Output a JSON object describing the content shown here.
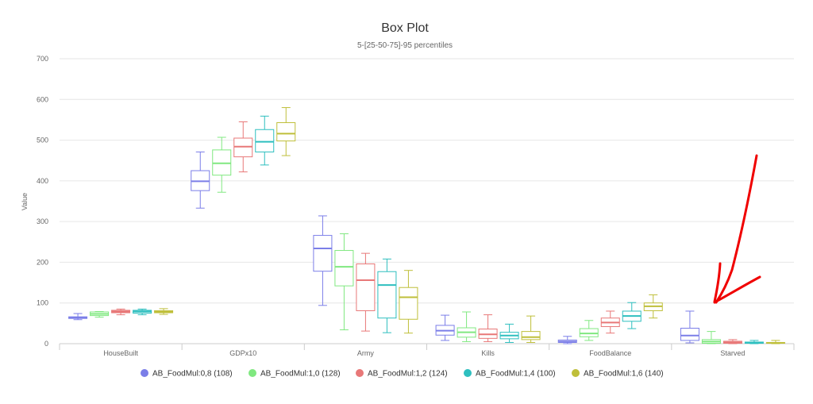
{
  "chart_data": {
    "type": "box",
    "title": "Box Plot",
    "subtitle": "5-[25-50-75]-95 percentiles",
    "ylabel": "Value",
    "xlabel": "",
    "ylim": [
      0,
      700
    ],
    "yticks": [
      0,
      100,
      200,
      300,
      400,
      500,
      600,
      700
    ],
    "grid": true,
    "legend_position": "bottom",
    "categories": [
      "HouseBuilt",
      "GDPx10",
      "Army",
      "Kills",
      "FoodBalance",
      "Starved"
    ],
    "series": [
      {
        "name": "AB_FoodMul:0,8 (108)",
        "color": "#7b7ee8",
        "boxes": [
          [
            59,
            62,
            64,
            66,
            74
          ],
          [
            333,
            376,
            399,
            425,
            471
          ],
          [
            94,
            178,
            234,
            266,
            314
          ],
          [
            8,
            21,
            32,
            45,
            70
          ],
          [
            0,
            3,
            5,
            9,
            18
          ],
          [
            2,
            8,
            20,
            38,
            80
          ]
        ]
      },
      {
        "name": "AB_FoodMul:1,0 (128)",
        "color": "#80e880",
        "boxes": [
          [
            65,
            69,
            73,
            78,
            79
          ],
          [
            372,
            414,
            443,
            476,
            507
          ],
          [
            34,
            142,
            189,
            229,
            270
          ],
          [
            5,
            16,
            28,
            39,
            78
          ],
          [
            8,
            17,
            25,
            37,
            57
          ],
          [
            0,
            1,
            5,
            10,
            30
          ]
        ]
      },
      {
        "name": "AB_FoodMul:1,2 (124)",
        "color": "#e87878",
        "boxes": [
          [
            71,
            76,
            79,
            82,
            85
          ],
          [
            422,
            459,
            484,
            505,
            545
          ],
          [
            31,
            81,
            156,
            196,
            222
          ],
          [
            5,
            13,
            23,
            36,
            71
          ],
          [
            26,
            42,
            52,
            63,
            80
          ],
          [
            0,
            1,
            3,
            6,
            10
          ]
        ]
      },
      {
        "name": "AB_FoodMul:1,4 (100)",
        "color": "#2ebfbf",
        "boxes": [
          [
            71,
            75,
            79,
            82,
            85
          ],
          [
            439,
            471,
            496,
            526,
            559
          ],
          [
            27,
            63,
            144,
            177,
            208
          ],
          [
            3,
            12,
            20,
            28,
            48
          ],
          [
            37,
            55,
            68,
            80,
            101
          ],
          [
            0,
            1,
            2,
            4,
            8
          ]
        ]
      },
      {
        "name": "AB_FoodMul:1,6 (140)",
        "color": "#bfbf3a",
        "boxes": [
          [
            72,
            76,
            78,
            81,
            86
          ],
          [
            462,
            498,
            516,
            543,
            580
          ],
          [
            26,
            60,
            114,
            138,
            180
          ],
          [
            3,
            10,
            16,
            30,
            68
          ],
          [
            63,
            81,
            92,
            100,
            120
          ],
          [
            0,
            1,
            2,
            3,
            8
          ]
        ]
      }
    ]
  },
  "annotation": {
    "color": "#f00000",
    "icon": "red-arrow-icon"
  }
}
